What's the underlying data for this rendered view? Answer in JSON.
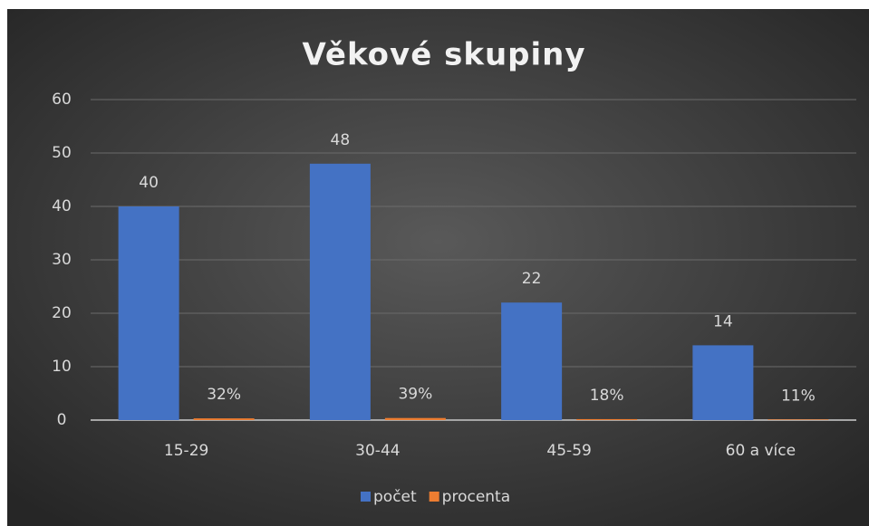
{
  "chart_data": {
    "type": "bar",
    "title": "Věkové skupiny",
    "categories": [
      "15-29",
      "30-44",
      "45-59",
      "60 a více"
    ],
    "series": [
      {
        "name": "počet",
        "color": "#4472c4",
        "values": [
          40,
          48,
          22,
          14
        ]
      },
      {
        "name": "procenta",
        "color": "#ed7d31",
        "values": [
          0.32,
          0.39,
          0.18,
          0.11
        ],
        "value_labels": [
          "32%",
          "39%",
          "18%",
          "11%"
        ]
      }
    ],
    "ylim": [
      0,
      60
    ],
    "yticks": [
      0,
      10,
      20,
      30,
      40,
      50,
      60
    ],
    "grid": true,
    "legend": "bottom"
  }
}
